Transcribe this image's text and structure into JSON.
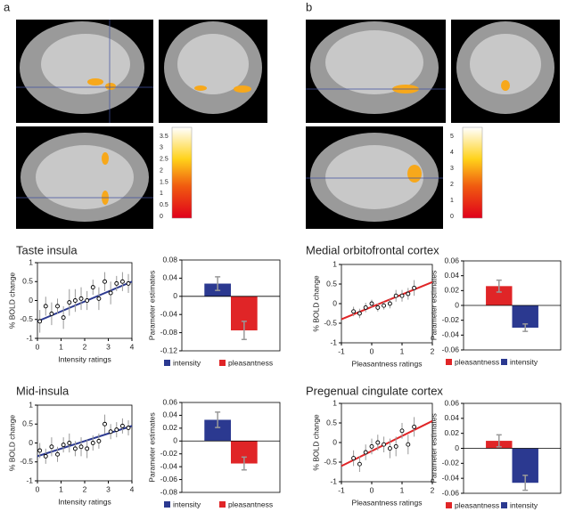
{
  "panels": [
    {
      "label": "a",
      "colorbar_ticks": [
        0,
        0.5,
        1,
        1.5,
        2,
        2.5,
        3,
        3.5
      ]
    },
    {
      "label": "b",
      "colorbar_ticks": [
        0,
        1,
        2,
        3,
        4,
        5
      ]
    }
  ],
  "regions": [
    "Taste insula",
    "Mid-insula",
    "Medial orbitofrontal cortex",
    "Pregenual cingulate cortex"
  ],
  "chart_data": [
    {
      "type": "scatter",
      "xlabel": "Intensity ratings",
      "ylabel": "% BOLD change",
      "x": [
        0.1,
        0.35,
        0.6,
        0.85,
        1.1,
        1.35,
        1.6,
        1.85,
        2.1,
        2.35,
        2.6,
        2.85,
        3.1,
        3.35,
        3.6,
        3.85
      ],
      "values": [
        -0.55,
        -0.15,
        -0.35,
        -0.15,
        -0.45,
        -0.05,
        0,
        0.05,
        0,
        0.35,
        0.05,
        0.5,
        0.2,
        0.45,
        0.5,
        0.45
      ],
      "errors": [
        0.3,
        0.25,
        0.3,
        0.2,
        0.3,
        0.35,
        0.3,
        0.3,
        0.25,
        0.2,
        0.3,
        0.25,
        0.3,
        0.2,
        0.25,
        0.25
      ],
      "point_color": "#000000",
      "error_color": "#999999",
      "fit": {
        "x": [
          0,
          4
        ],
        "values": [
          -0.55,
          0.5
        ],
        "color": "#2b3990"
      },
      "xlim": [
        0,
        4
      ],
      "ylim": [
        -1,
        1
      ],
      "xticks": [
        0,
        1,
        2,
        3,
        4
      ],
      "yticks": [
        -1,
        -0.5,
        0,
        0.5,
        1
      ]
    },
    {
      "type": "bar",
      "ylabel": "Parameter estimates",
      "categories": [
        "intensity",
        "pleasantness"
      ],
      "values": [
        0.028,
        -0.075
      ],
      "errors": [
        0.015,
        0.02
      ],
      "colors": [
        "#2b3990",
        "#e02527"
      ],
      "error_color": "#999999",
      "ylim": [
        -0.12,
        0.08
      ],
      "yticks": [
        -0.12,
        -0.08,
        -0.04,
        0,
        0.04,
        0.08
      ]
    },
    {
      "type": "scatter",
      "xlabel": "Intensity ratings",
      "ylabel": "% BOLD change",
      "x": [
        0.1,
        0.35,
        0.6,
        0.85,
        1.1,
        1.35,
        1.6,
        1.85,
        2.1,
        2.35,
        2.6,
        2.85,
        3.1,
        3.35,
        3.6,
        3.85
      ],
      "values": [
        -0.2,
        -0.35,
        -0.1,
        -0.3,
        -0.05,
        0,
        -0.15,
        -0.1,
        -0.15,
        0,
        0.05,
        0.5,
        0.3,
        0.35,
        0.45,
        0.4
      ],
      "errors": [
        0.2,
        0.2,
        0.25,
        0.2,
        0.2,
        0.25,
        0.2,
        0.25,
        0.25,
        0.2,
        0.2,
        0.25,
        0.2,
        0.2,
        0.2,
        0.2
      ],
      "point_color": "#000000",
      "error_color": "#999999",
      "fit": {
        "x": [
          0,
          4
        ],
        "values": [
          -0.35,
          0.45
        ],
        "color": "#2b3990"
      },
      "xlim": [
        0,
        4
      ],
      "ylim": [
        -1,
        1
      ],
      "xticks": [
        0,
        1,
        2,
        3,
        4
      ],
      "yticks": [
        -1,
        -0.5,
        0,
        0.5,
        1
      ]
    },
    {
      "type": "bar",
      "ylabel": "Parameter estimates",
      "categories": [
        "intensity",
        "pleasantness"
      ],
      "values": [
        0.033,
        -0.035
      ],
      "errors": [
        0.012,
        0.01
      ],
      "colors": [
        "#2b3990",
        "#e02527"
      ],
      "error_color": "#999999",
      "ylim": [
        -0.08,
        0.06
      ],
      "yticks": [
        -0.08,
        -0.06,
        -0.04,
        -0.02,
        0,
        0.02,
        0.04,
        0.06
      ]
    },
    {
      "type": "scatter",
      "xlabel": "Pleasantness ratings",
      "ylabel": "% BOLD change",
      "x": [
        -0.6,
        -0.4,
        -0.2,
        0,
        0.2,
        0.4,
        0.6,
        0.8,
        1,
        1.2,
        1.4
      ],
      "values": [
        -0.2,
        -0.25,
        -0.1,
        0,
        -0.1,
        -0.05,
        0,
        0.2,
        0.2,
        0.25,
        0.4
      ],
      "errors": [
        0.12,
        0.12,
        0.12,
        0.1,
        0.1,
        0.1,
        0.12,
        0.15,
        0.15,
        0.15,
        0.2
      ],
      "point_color": "#000000",
      "error_color": "#999999",
      "fit": {
        "x": [
          -1,
          2
        ],
        "values": [
          -0.4,
          0.55
        ],
        "color": "#e02527"
      },
      "xlim": [
        -1,
        2
      ],
      "ylim": [
        -1,
        1
      ],
      "xticks": [
        -1,
        0,
        1,
        2
      ],
      "yticks": [
        -1,
        -0.5,
        0,
        0.5,
        1
      ]
    },
    {
      "type": "bar",
      "ylabel": "Parameter estimates",
      "categories": [
        "pleasantness",
        "intensity"
      ],
      "values": [
        0.026,
        -0.03
      ],
      "errors": [
        0.008,
        0.005
      ],
      "colors": [
        "#e02527",
        "#2b3990"
      ],
      "error_color": "#999999",
      "ylim": [
        -0.06,
        0.06
      ],
      "yticks": [
        -0.06,
        -0.04,
        -0.02,
        0,
        0.02,
        0.04,
        0.06
      ]
    },
    {
      "type": "scatter",
      "xlabel": "Pleasantness ratings",
      "ylabel": "% BOLD change",
      "x": [
        -0.6,
        -0.4,
        -0.2,
        0,
        0.2,
        0.4,
        0.6,
        0.8,
        1,
        1.2,
        1.4
      ],
      "values": [
        -0.4,
        -0.55,
        -0.25,
        -0.1,
        0,
        -0.05,
        -0.15,
        -0.1,
        0.3,
        -0.05,
        0.4
      ],
      "errors": [
        0.2,
        0.2,
        0.2,
        0.2,
        0.2,
        0.2,
        0.25,
        0.25,
        0.2,
        0.25,
        0.25
      ],
      "point_color": "#000000",
      "error_color": "#999999",
      "fit": {
        "x": [
          -1,
          2
        ],
        "values": [
          -0.6,
          0.55
        ],
        "color": "#e02527"
      },
      "xlim": [
        -1,
        2
      ],
      "ylim": [
        -1,
        1
      ],
      "xticks": [
        -1,
        0,
        1,
        2
      ],
      "yticks": [
        -1,
        -0.5,
        0,
        0.5,
        1
      ]
    },
    {
      "type": "bar",
      "ylabel": "Parameter estimates",
      "categories": [
        "pleasantness",
        "intensity"
      ],
      "values": [
        0.01,
        -0.046
      ],
      "errors": [
        0.008,
        0.01
      ],
      "colors": [
        "#e02527",
        "#2b3990"
      ],
      "error_color": "#999999",
      "ylim": [
        -0.06,
        0.06
      ],
      "yticks": [
        -0.06,
        -0.04,
        -0.02,
        0,
        0.02,
        0.04,
        0.06
      ]
    }
  ]
}
